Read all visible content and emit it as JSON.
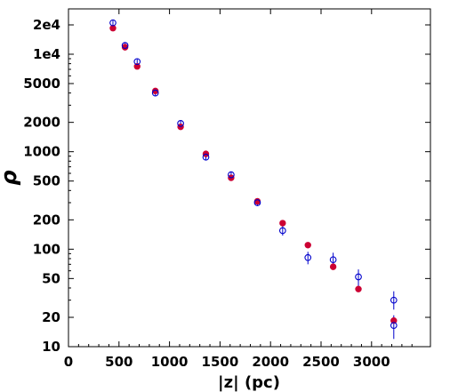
{
  "chart_data": {
    "type": "scatter",
    "xlabel": "|z| (pc)",
    "ylabel": "ρ",
    "xlim": [
      0,
      3500
    ],
    "ylim": [
      10,
      30000
    ],
    "yscale": "log",
    "x_ticks": [
      0,
      500,
      1000,
      1500,
      2000,
      2500,
      3000
    ],
    "y_ticks": [
      {
        "value": 10,
        "label": "10"
      },
      {
        "value": 20,
        "label": "20"
      },
      {
        "value": 50,
        "label": "50"
      },
      {
        "value": 100,
        "label": "100"
      },
      {
        "value": 200,
        "label": "200"
      },
      {
        "value": 500,
        "label": "500"
      },
      {
        "value": 1000,
        "label": "1000"
      },
      {
        "value": 2000,
        "label": "2000"
      },
      {
        "value": 5000,
        "label": "5000"
      },
      {
        "value": 10000,
        "label": "1e4"
      },
      {
        "value": 20000,
        "label": "2e4"
      }
    ],
    "grid": false,
    "series": [
      {
        "color": "#0000cc",
        "marker": "open-circle",
        "points": [
          {
            "x": 440,
            "y": 21000,
            "err": [
              19800,
              22200
            ]
          },
          {
            "x": 560,
            "y": 12300,
            "err": [
              11600,
              13000
            ]
          },
          {
            "x": 680,
            "y": 8400,
            "err": [
              7900,
              8900
            ]
          },
          {
            "x": 860,
            "y": 4000,
            "err": [
              3750,
              4250
            ]
          },
          {
            "x": 1110,
            "y": 1950,
            "err": [
              1820,
              2080
            ]
          },
          {
            "x": 1360,
            "y": 880,
            "err": [
              820,
              940
            ]
          },
          {
            "x": 1610,
            "y": 580,
            "err": [
              540,
              620
            ]
          },
          {
            "x": 1870,
            "y": 300,
            "err": [
              278,
              322
            ]
          },
          {
            "x": 2120,
            "y": 155,
            "err": [
              138,
              172
            ]
          },
          {
            "x": 2370,
            "y": 82,
            "err": [
              70,
              94
            ]
          },
          {
            "x": 2620,
            "y": 78,
            "err": [
              66,
              92
            ]
          },
          {
            "x": 2870,
            "y": 52,
            "err": [
              42,
              62
            ]
          },
          {
            "x": 3220,
            "y": 30,
            "err": [
              24,
              37
            ]
          },
          {
            "x": 3220,
            "y": 16.5,
            "err": [
              12,
              21
            ]
          }
        ]
      },
      {
        "color": "#cc0033",
        "marker": "filled-circle",
        "points": [
          {
            "x": 440,
            "y": 18500
          },
          {
            "x": 560,
            "y": 11800
          },
          {
            "x": 680,
            "y": 7500
          },
          {
            "x": 860,
            "y": 4200
          },
          {
            "x": 1110,
            "y": 1800
          },
          {
            "x": 1360,
            "y": 950
          },
          {
            "x": 1610,
            "y": 540
          },
          {
            "x": 1870,
            "y": 310
          },
          {
            "x": 2120,
            "y": 185
          },
          {
            "x": 2370,
            "y": 110
          },
          {
            "x": 2620,
            "y": 66
          },
          {
            "x": 2870,
            "y": 39
          },
          {
            "x": 3220,
            "y": 18.5
          }
        ]
      }
    ]
  }
}
